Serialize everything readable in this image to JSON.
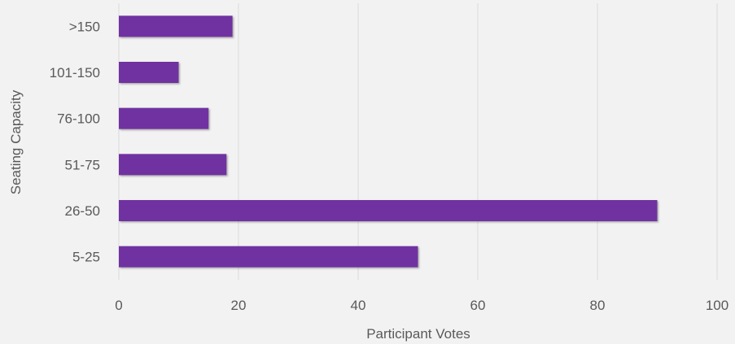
{
  "chart_data": {
    "type": "bar",
    "orientation": "horizontal",
    "categories": [
      "5-25",
      "26-50",
      "51-75",
      "76-100",
      "101-150",
      ">150"
    ],
    "values": [
      50,
      90,
      18,
      15,
      10,
      19
    ],
    "title": "",
    "xlabel": "Participant Votes",
    "ylabel": "Seating Capacity",
    "xlim": [
      0,
      100
    ],
    "xticks": [
      "0",
      "20",
      "40",
      "60",
      "80",
      "100"
    ],
    "grid": true,
    "legend": "none",
    "colors": {
      "bar": "#7030a0",
      "grid": "#d9d9d9",
      "text": "#595959",
      "background": "#f2f2f2"
    }
  }
}
